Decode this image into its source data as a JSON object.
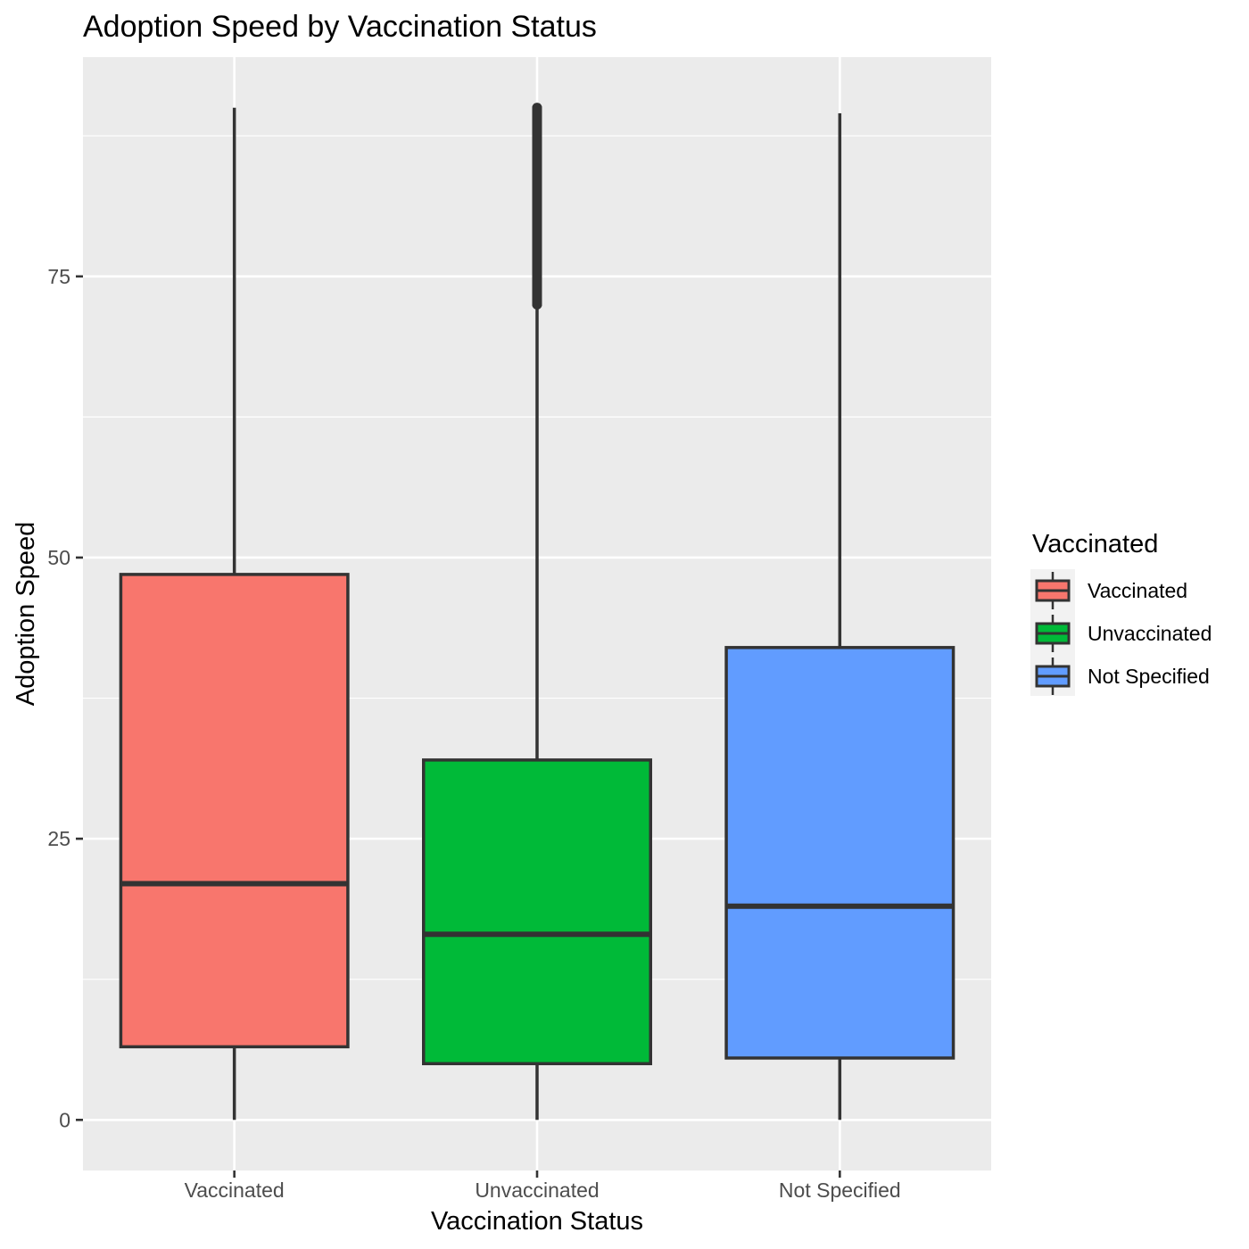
{
  "chart_data": {
    "type": "boxplot",
    "title": "Adoption Speed by Vaccination Status",
    "xlabel": "Vaccination Status",
    "ylabel": "Adoption Speed",
    "ylim": [
      -4.5,
      94.5
    ],
    "yticks": [
      0,
      25,
      50,
      75
    ],
    "grid": true,
    "legend": {
      "title": "Vaccinated",
      "position": "right"
    },
    "categories": [
      "Vaccinated",
      "Unvaccinated",
      "Not Specified"
    ],
    "colors": [
      "#F8766D",
      "#00BA38",
      "#619CFF"
    ],
    "box_line_color": "#333333",
    "panel_color": "#EBEBEB",
    "boxes": [
      {
        "name": "Vaccinated",
        "min": 0,
        "q1": 6.5,
        "median": 21,
        "q3": 48.5,
        "max": 90
      },
      {
        "name": "Unvaccinated",
        "min": 0,
        "q1": 5,
        "median": 16.5,
        "q3": 32,
        "max": 73,
        "outliers": [
          72.5,
          74,
          76,
          78,
          80,
          82,
          84,
          86,
          88,
          90
        ]
      },
      {
        "name": "Not Specified",
        "min": 0,
        "q1": 5.5,
        "median": 19,
        "q3": 42,
        "max": 89.5
      }
    ]
  }
}
